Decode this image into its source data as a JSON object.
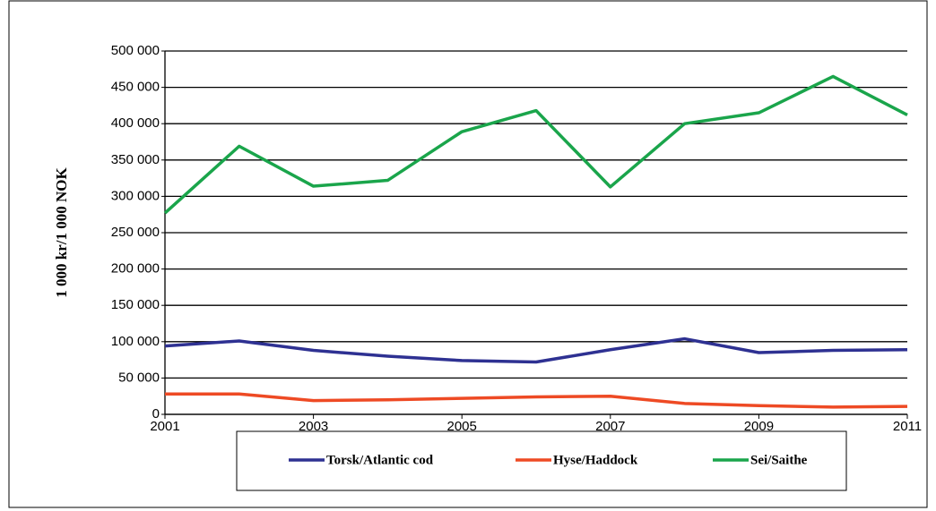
{
  "chart_data": {
    "type": "line",
    "y_label": "1 000 kr/1 000 NOK",
    "x": [
      2001,
      2002,
      2003,
      2004,
      2005,
      2006,
      2007,
      2008,
      2009,
      2010,
      2011
    ],
    "xlim": [
      2001,
      2011
    ],
    "xticks": [
      2001,
      2003,
      2005,
      2007,
      2009,
      2011
    ],
    "ylim": [
      0,
      500000
    ],
    "yticks": [
      {
        "value": 0,
        "label": "0"
      },
      {
        "value": 50000,
        "label": "50 000"
      },
      {
        "value": 100000,
        "label": "100 000"
      },
      {
        "value": 150000,
        "label": "150 000"
      },
      {
        "value": 200000,
        "label": "200 000"
      },
      {
        "value": 250000,
        "label": "250 000"
      },
      {
        "value": 300000,
        "label": "300 000"
      },
      {
        "value": 350000,
        "label": "350 000"
      },
      {
        "value": 400000,
        "label": "400 000"
      },
      {
        "value": 450000,
        "label": "450 000"
      },
      {
        "value": 500000,
        "label": "500 000"
      }
    ],
    "grid": true,
    "legend": "bottom",
    "series": [
      {
        "name": "Torsk/Atlantic cod",
        "color": "#2e3192",
        "values": [
          94000,
          101000,
          88000,
          80000,
          74000,
          72000,
          89000,
          104000,
          85000,
          88000,
          89000
        ]
      },
      {
        "name": "Hyse/Haddock",
        "color": "#ee4a24",
        "values": [
          28000,
          28000,
          19000,
          20000,
          22000,
          24000,
          25000,
          15000,
          12000,
          10000,
          11000
        ]
      },
      {
        "name": "Sei/Saithe",
        "color": "#1aa54b",
        "values": [
          277000,
          369000,
          314000,
          322000,
          389000,
          418000,
          313000,
          400000,
          415000,
          465000,
          412000
        ]
      }
    ]
  }
}
